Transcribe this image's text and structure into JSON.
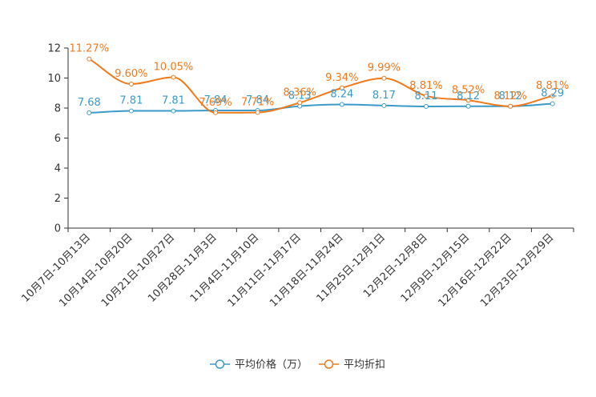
{
  "chart_data": {
    "type": "line",
    "categories": [
      "10月7日-10月13日",
      "10月14日-10月20日",
      "10月21日-10月27日",
      "10月28日-11月3日",
      "11月4日-11月10日",
      "11月11日-11月17日",
      "11月18日-11月24日",
      "11月25日-12月1日",
      "12月2日-12月8日",
      "12月9日-12月15日",
      "12月16日-12月22日",
      "12月23日-12月29日"
    ],
    "series": [
      {
        "name": "平均价格（万）",
        "color": "#3a9ac9",
        "values": [
          7.68,
          7.81,
          7.81,
          7.84,
          7.84,
          8.13,
          8.24,
          8.17,
          8.11,
          8.12,
          8.12,
          8.29
        ],
        "labels": [
          "7.68",
          "7.81",
          "7.81",
          "7.84",
          "7.84",
          "8.13",
          "8.24",
          "8.17",
          "8.11",
          "8.12",
          "8.12",
          "8.29"
        ]
      },
      {
        "name": "平均折扣",
        "color": "#f07a1c",
        "values": [
          11.27,
          9.6,
          10.05,
          7.69,
          7.71,
          8.36,
          9.34,
          9.99,
          8.81,
          8.52,
          8.12,
          8.81
        ],
        "labels": [
          "11.27%",
          "9.60%",
          "10.05%",
          "7.69%",
          "7.71%",
          "8.36%",
          "9.34%",
          "9.99%",
          "8.81%",
          "8.52%",
          "8.12%",
          "8.81%"
        ]
      }
    ],
    "y_ticks": [
      "0",
      "2",
      "4",
      "6",
      "8",
      "10",
      "12"
    ],
    "ylim": [
      0,
      12
    ],
    "grid": false,
    "legend": "bottom-center",
    "title": "",
    "xlabel": "",
    "ylabel": ""
  }
}
